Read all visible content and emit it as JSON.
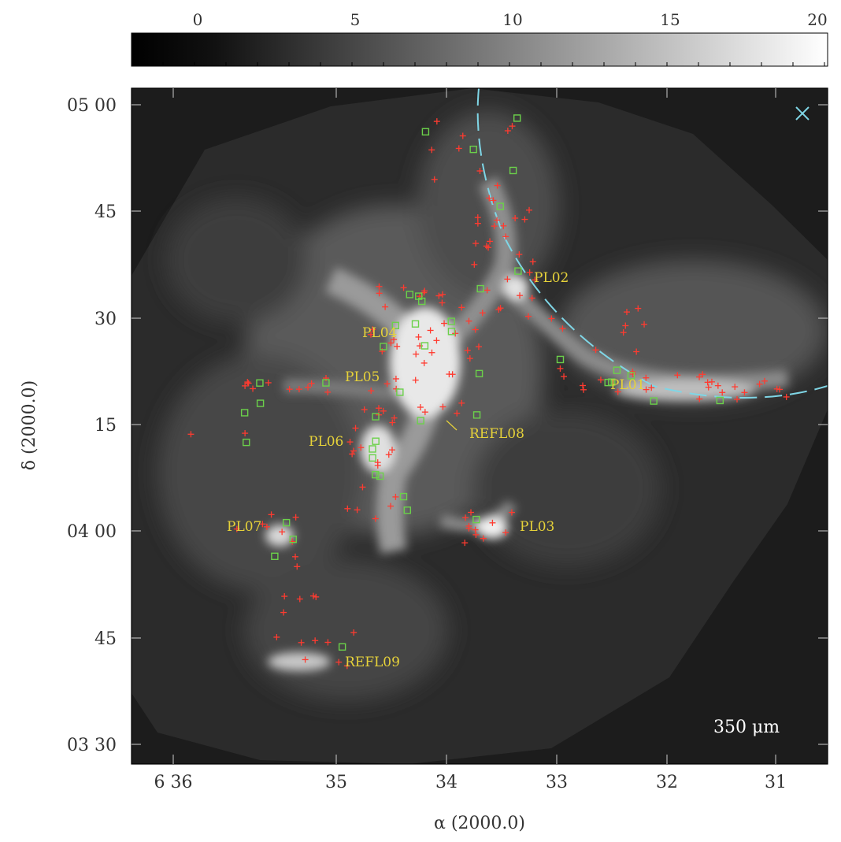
{
  "colorbar": {
    "ticks": [
      "0",
      "5",
      "10",
      "15",
      "20"
    ]
  },
  "axes": {
    "x_label": "α (2000.0)",
    "y_label": "δ (2000.0)",
    "x_ticks": [
      "6 36",
      "35",
      "34",
      "33",
      "32",
      "31"
    ],
    "y_ticks": [
      "05 00",
      "45",
      "30",
      "15",
      "04 00",
      "45",
      "03 30"
    ]
  },
  "wavelength_label": "350 μm",
  "region_labels": [
    "PL02",
    "PL04",
    "PL05",
    "PL01",
    "PL06",
    "REFL08",
    "PL07",
    "PL03",
    "REFL09"
  ],
  "colors": {
    "background": "#1c1c1c",
    "red_marker": "#ff3b30",
    "green_marker": "#6bd14a",
    "label_yellow": "#e6d23a",
    "cyan_curve": "#7fd6e6"
  },
  "icons": [
    "cross-mark-icon"
  ]
}
